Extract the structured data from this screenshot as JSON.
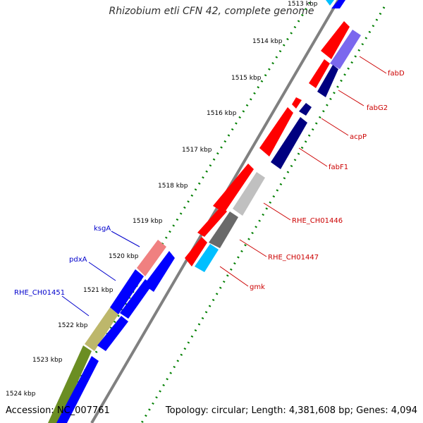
{
  "title": "Rhizobium etli CFN 42, complete genome",
  "accession": "Accession: NC_007761",
  "summary": "Topology: circular; Length: 4,381,608 bp; Genes: 4,094",
  "ticks": [
    "1513 kbp",
    "1514 kbp",
    "1515 kbp",
    "1516 kbp",
    "1517 kbp",
    "1518 kbp",
    "1519 kbp",
    "1520 kbp",
    "1521 kbp",
    "1522 kbp",
    "1523 kbp",
    "1524 kbp"
  ],
  "genes_right": [
    "fabD",
    "fabG2",
    "acpP",
    "fabF1",
    "RHE_CH01446",
    "RHE_CH01447",
    "gmk"
  ],
  "genes_left": [
    "ksgA",
    "pdxA",
    "RHE_CH01451"
  ],
  "colors": {
    "red": "#ff0000",
    "blue": "#0000ff",
    "navy": "#000080",
    "violet": "#7b68ee",
    "gray": "#c0c0c0",
    "dark_gray": "#696969",
    "cyan": "#00bfff",
    "salmon": "#f08080",
    "khaki": "#bdb76b",
    "olive": "#6b8e23",
    "backbone": "#808080",
    "tick_green": "#007f00",
    "label_red": "#cc0000",
    "label_blue": "#0000cc"
  }
}
